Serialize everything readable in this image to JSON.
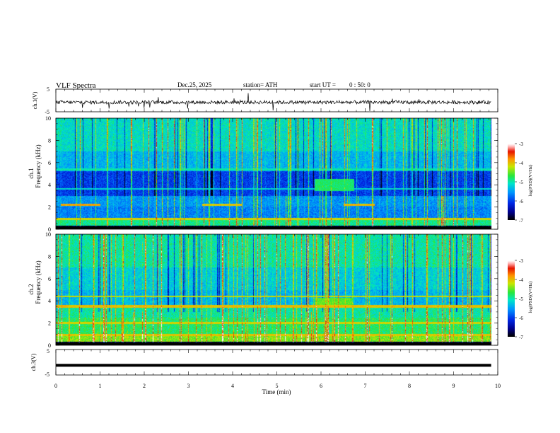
{
  "header": {
    "title": "VLF  Spectra",
    "date": "Dec.25, 2025",
    "station": "station= ATH",
    "start_label": "start  UT  =",
    "start_time": "0 : 50: 0"
  },
  "chart_data": [
    {
      "type": "line",
      "name": "ch1-waveform",
      "ylabel": "ch.1(V)",
      "ylim": [
        -5,
        5
      ],
      "yticks": [
        "5",
        "-5"
      ],
      "xlim": [
        0,
        10
      ],
      "note": "raw waveform trace, near 0 V with spikes"
    },
    {
      "type": "heatmap",
      "name": "ch1-spectrogram",
      "ylabel": "ch.1\nFrequency  (kHz)",
      "ylabel_top": "ch.1",
      "ylabel_bottom": "Frequency  (kHz)",
      "ylim": [
        0,
        10
      ],
      "yticks": [
        "0",
        "2",
        "4",
        "6",
        "8",
        "10"
      ],
      "xlim": [
        0,
        10
      ],
      "data_ends_min": 9.85,
      "colorbar": {
        "label": "log(PSD)(V²/Hz)",
        "range": [
          -7,
          -3
        ],
        "ticks": [
          "-3",
          "-4",
          "-5",
          "-6",
          "-7"
        ]
      }
    },
    {
      "type": "heatmap",
      "name": "ch2-spectrogram",
      "ylabel_top": "ch.2",
      "ylabel_bottom": "Frequency  (kHz)",
      "ylim": [
        0,
        10
      ],
      "yticks": [
        "0",
        "2",
        "4",
        "6",
        "8",
        "10"
      ],
      "xlim": [
        0,
        10
      ],
      "data_ends_min": 9.85,
      "colorbar": {
        "label": "log(PSD)(V²/Hz)",
        "range": [
          -7,
          -3
        ],
        "ticks": [
          "-3",
          "-4",
          "-5",
          "-6",
          "-7"
        ]
      }
    },
    {
      "type": "line",
      "name": "ch3-waveform",
      "ylabel": "ch.3(V)",
      "ylim": [
        -5,
        5
      ],
      "yticks": [
        "5",
        "-5"
      ],
      "xlim": [
        0,
        10
      ],
      "value_constant": -1.2
    }
  ],
  "xaxis": {
    "label": "Time  (min)",
    "ticks": [
      "0",
      "1",
      "2",
      "3",
      "4",
      "5",
      "6",
      "7",
      "8",
      "9",
      "10"
    ]
  }
}
